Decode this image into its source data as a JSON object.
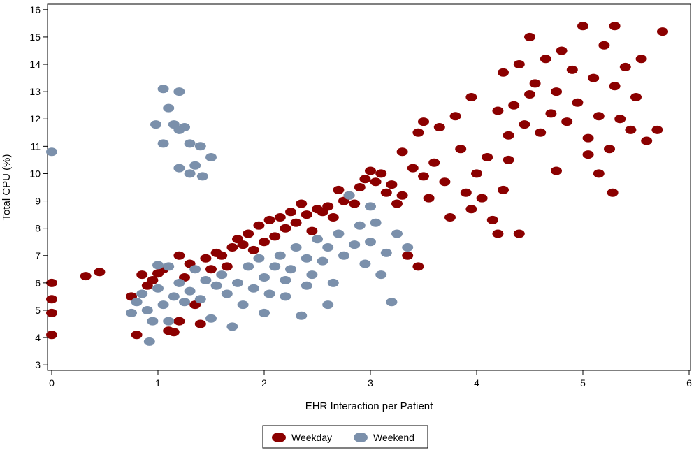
{
  "chart_data": {
    "type": "scatter",
    "title": "",
    "xlabel": "EHR Interaction per Patient",
    "ylabel": "Total CPU (%)",
    "xlim": [
      0,
      6
    ],
    "ylim": [
      2.8,
      16.2
    ],
    "x_ticks": [
      0,
      1,
      2,
      3,
      4,
      5,
      6
    ],
    "y_ticks": [
      3,
      4,
      5,
      6,
      7,
      8,
      9,
      10,
      11,
      12,
      13,
      14,
      15,
      16
    ],
    "grid": false,
    "legend": {
      "placement": "bottom-center",
      "entries": [
        "Weekday",
        "Weekend"
      ]
    },
    "colors": {
      "Weekday": "#8b0000",
      "Weekend": "#7b90ab"
    },
    "series": [
      {
        "name": "Weekday",
        "points": [
          [
            0.0,
            6.0
          ],
          [
            0.0,
            5.4
          ],
          [
            0.0,
            4.9
          ],
          [
            0.0,
            4.1
          ],
          [
            0.32,
            6.25
          ],
          [
            0.45,
            6.4
          ],
          [
            0.75,
            5.5
          ],
          [
            0.8,
            4.1
          ],
          [
            0.85,
            6.3
          ],
          [
            0.9,
            5.9
          ],
          [
            0.95,
            6.1
          ],
          [
            1.0,
            6.35
          ],
          [
            1.05,
            6.5
          ],
          [
            1.1,
            4.25
          ],
          [
            1.15,
            4.2
          ],
          [
            1.2,
            4.6
          ],
          [
            1.2,
            7.0
          ],
          [
            1.25,
            6.2
          ],
          [
            1.3,
            6.7
          ],
          [
            1.35,
            5.2
          ],
          [
            1.4,
            4.5
          ],
          [
            1.45,
            6.9
          ],
          [
            1.5,
            6.5
          ],
          [
            1.55,
            7.1
          ],
          [
            1.6,
            7.0
          ],
          [
            1.65,
            6.6
          ],
          [
            1.7,
            7.3
          ],
          [
            1.75,
            7.6
          ],
          [
            1.8,
            7.4
          ],
          [
            1.85,
            7.8
          ],
          [
            1.9,
            7.2
          ],
          [
            1.95,
            8.1
          ],
          [
            2.0,
            7.5
          ],
          [
            2.05,
            8.3
          ],
          [
            2.1,
            7.7
          ],
          [
            2.15,
            8.4
          ],
          [
            2.2,
            8.0
          ],
          [
            2.25,
            8.6
          ],
          [
            2.3,
            8.2
          ],
          [
            2.35,
            8.9
          ],
          [
            2.4,
            8.5
          ],
          [
            2.45,
            7.9
          ],
          [
            2.5,
            8.7
          ],
          [
            2.55,
            8.6
          ],
          [
            2.6,
            8.8
          ],
          [
            2.65,
            8.4
          ],
          [
            2.7,
            9.4
          ],
          [
            2.75,
            9.0
          ],
          [
            2.8,
            9.2
          ],
          [
            2.85,
            8.9
          ],
          [
            2.9,
            9.5
          ],
          [
            2.95,
            9.8
          ],
          [
            3.0,
            10.1
          ],
          [
            3.05,
            9.7
          ],
          [
            3.1,
            10.0
          ],
          [
            3.15,
            9.3
          ],
          [
            3.2,
            9.6
          ],
          [
            3.25,
            8.9
          ],
          [
            3.3,
            9.2
          ],
          [
            3.35,
            7.0
          ],
          [
            3.45,
            6.6
          ],
          [
            3.3,
            10.8
          ],
          [
            3.4,
            10.2
          ],
          [
            3.45,
            11.5
          ],
          [
            3.5,
            11.9
          ],
          [
            3.5,
            9.9
          ],
          [
            3.55,
            9.1
          ],
          [
            3.6,
            10.4
          ],
          [
            3.65,
            11.7
          ],
          [
            3.7,
            9.7
          ],
          [
            3.75,
            8.4
          ],
          [
            3.8,
            12.1
          ],
          [
            3.85,
            10.9
          ],
          [
            3.9,
            9.3
          ],
          [
            3.95,
            12.8
          ],
          [
            3.95,
            8.7
          ],
          [
            4.0,
            10.0
          ],
          [
            4.05,
            9.1
          ],
          [
            4.1,
            10.6
          ],
          [
            4.15,
            8.3
          ],
          [
            4.2,
            7.8
          ],
          [
            4.25,
            9.4
          ],
          [
            4.4,
            7.8
          ],
          [
            4.2,
            12.3
          ],
          [
            4.25,
            13.7
          ],
          [
            4.3,
            11.4
          ],
          [
            4.35,
            12.5
          ],
          [
            4.4,
            14.0
          ],
          [
            4.45,
            11.8
          ],
          [
            4.5,
            12.9
          ],
          [
            4.55,
            13.3
          ],
          [
            4.6,
            11.5
          ],
          [
            4.65,
            14.2
          ],
          [
            4.7,
            12.2
          ],
          [
            4.75,
            13.0
          ],
          [
            4.8,
            14.5
          ],
          [
            4.85,
            11.9
          ],
          [
            4.9,
            13.8
          ],
          [
            4.95,
            12.6
          ],
          [
            5.0,
            15.4
          ],
          [
            5.05,
            11.3
          ],
          [
            5.1,
            13.5
          ],
          [
            5.15,
            12.1
          ],
          [
            5.2,
            14.7
          ],
          [
            5.25,
            10.9
          ],
          [
            5.3,
            13.2
          ],
          [
            5.35,
            12.0
          ],
          [
            5.4,
            13.9
          ],
          [
            5.45,
            11.6
          ],
          [
            5.5,
            12.8
          ],
          [
            5.55,
            14.2
          ],
          [
            5.6,
            11.2
          ],
          [
            5.7,
            11.6
          ],
          [
            5.75,
            15.2
          ],
          [
            5.3,
            15.4
          ],
          [
            5.28,
            9.3
          ],
          [
            4.3,
            10.5
          ],
          [
            4.75,
            10.1
          ],
          [
            5.05,
            10.7
          ],
          [
            4.5,
            15.0
          ],
          [
            5.15,
            10.0
          ]
        ]
      },
      {
        "name": "Weekend",
        "points": [
          [
            0.0,
            10.8
          ],
          [
            1.05,
            13.1
          ],
          [
            1.2,
            13.0
          ],
          [
            1.1,
            12.4
          ],
          [
            0.98,
            11.8
          ],
          [
            1.15,
            11.8
          ],
          [
            1.25,
            11.7
          ],
          [
            1.2,
            11.6
          ],
          [
            1.05,
            11.1
          ],
          [
            1.3,
            11.1
          ],
          [
            1.4,
            11.0
          ],
          [
            1.5,
            10.6
          ],
          [
            1.2,
            10.2
          ],
          [
            1.35,
            10.3
          ],
          [
            1.3,
            10.0
          ],
          [
            1.42,
            9.9
          ],
          [
            0.75,
            4.9
          ],
          [
            0.8,
            5.3
          ],
          [
            0.85,
            5.6
          ],
          [
            0.9,
            5.0
          ],
          [
            0.92,
            3.85
          ],
          [
            0.95,
            4.6
          ],
          [
            1.0,
            5.8
          ],
          [
            1.05,
            5.2
          ],
          [
            1.1,
            4.6
          ],
          [
            1.15,
            5.5
          ],
          [
            1.2,
            6.0
          ],
          [
            1.25,
            5.3
          ],
          [
            1.3,
            5.7
          ],
          [
            1.35,
            6.5
          ],
          [
            1.4,
            5.4
          ],
          [
            1.45,
            6.1
          ],
          [
            1.5,
            4.7
          ],
          [
            1.55,
            5.9
          ],
          [
            1.6,
            6.3
          ],
          [
            1.65,
            5.6
          ],
          [
            1.7,
            4.4
          ],
          [
            1.75,
            6.0
          ],
          [
            1.8,
            5.2
          ],
          [
            1.85,
            6.6
          ],
          [
            1.9,
            5.8
          ],
          [
            1.95,
            6.9
          ],
          [
            2.0,
            6.2
          ],
          [
            2.05,
            5.6
          ],
          [
            2.1,
            6.6
          ],
          [
            2.15,
            7.0
          ],
          [
            2.2,
            6.1
          ],
          [
            2.25,
            6.5
          ],
          [
            2.3,
            7.3
          ],
          [
            2.35,
            4.8
          ],
          [
            2.4,
            6.9
          ],
          [
            2.45,
            6.3
          ],
          [
            2.5,
            7.6
          ],
          [
            2.55,
            6.8
          ],
          [
            2.6,
            7.3
          ],
          [
            2.65,
            6.0
          ],
          [
            2.7,
            7.8
          ],
          [
            2.75,
            7.0
          ],
          [
            2.8,
            9.2
          ],
          [
            2.85,
            7.4
          ],
          [
            2.9,
            8.1
          ],
          [
            2.95,
            6.7
          ],
          [
            3.0,
            7.5
          ],
          [
            3.05,
            8.2
          ],
          [
            3.1,
            6.3
          ],
          [
            3.15,
            7.1
          ],
          [
            3.2,
            5.3
          ],
          [
            3.25,
            7.8
          ],
          [
            3.35,
            7.3
          ],
          [
            2.2,
            5.5
          ],
          [
            2.6,
            5.2
          ],
          [
            2.4,
            5.9
          ],
          [
            3.0,
            8.8
          ],
          [
            2.0,
            4.9
          ],
          [
            1.0,
            6.65
          ],
          [
            1.1,
            6.6
          ]
        ]
      }
    ]
  }
}
